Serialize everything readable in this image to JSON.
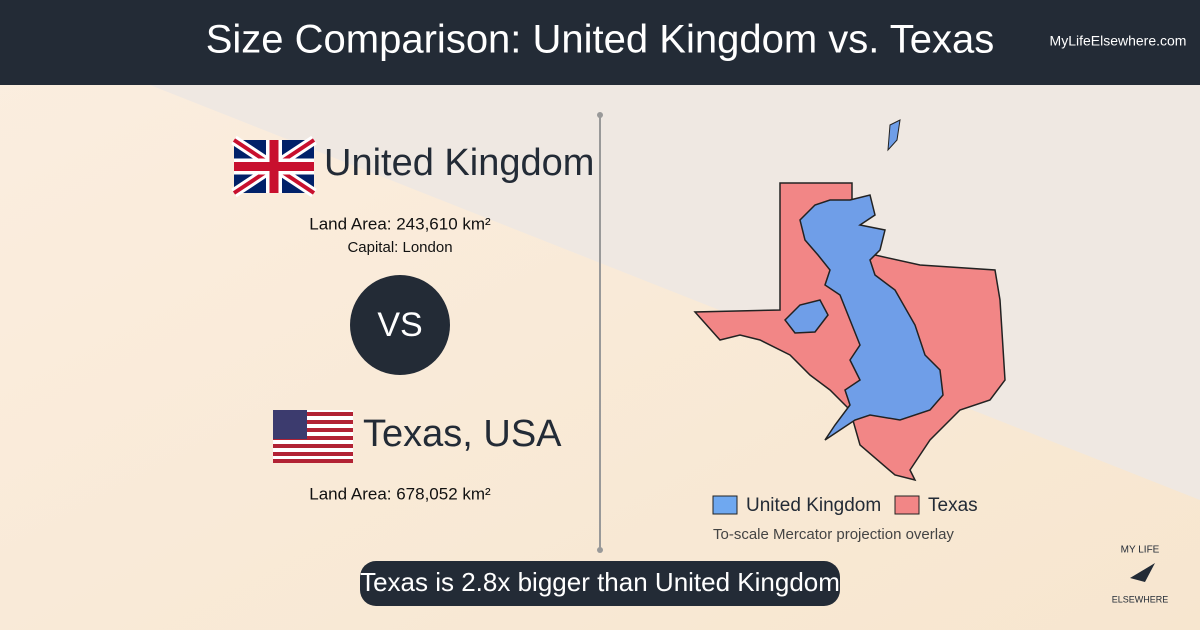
{
  "header": {
    "title": "Size Comparison: United Kingdom vs. Texas",
    "site": "MyLifeElsewhere.com"
  },
  "left": {
    "country1": {
      "name": "United Kingdom",
      "land_area": "Land Area: 243,610 km²",
      "capital": "Capital: London"
    },
    "versus": "VS",
    "country2": {
      "name": "Texas, USA",
      "land_area": "Land Area: 678,052 km²"
    }
  },
  "map": {
    "legend": [
      "United Kingdom",
      "Texas"
    ],
    "note": "To-scale Mercator projection overlay"
  },
  "banner": "Texas is 2.8x bigger than United Kingdom",
  "logo": {
    "line1": "MY LIFE",
    "line2": "ELSEWHERE"
  }
}
